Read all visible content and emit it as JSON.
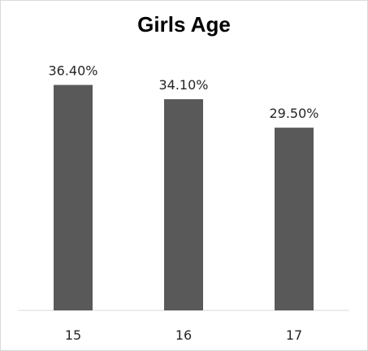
{
  "chart_data": {
    "type": "bar",
    "title": "Girls Age",
    "categories": [
      "15",
      "16",
      "17"
    ],
    "values": [
      36.4,
      34.1,
      29.5
    ],
    "value_labels": [
      "36.40%",
      "34.10%",
      "29.50%"
    ],
    "ylim": [
      0,
      45
    ],
    "grid": false,
    "legend": "none",
    "bar_color": "#595959",
    "axis_color": "#d9d9d9"
  }
}
